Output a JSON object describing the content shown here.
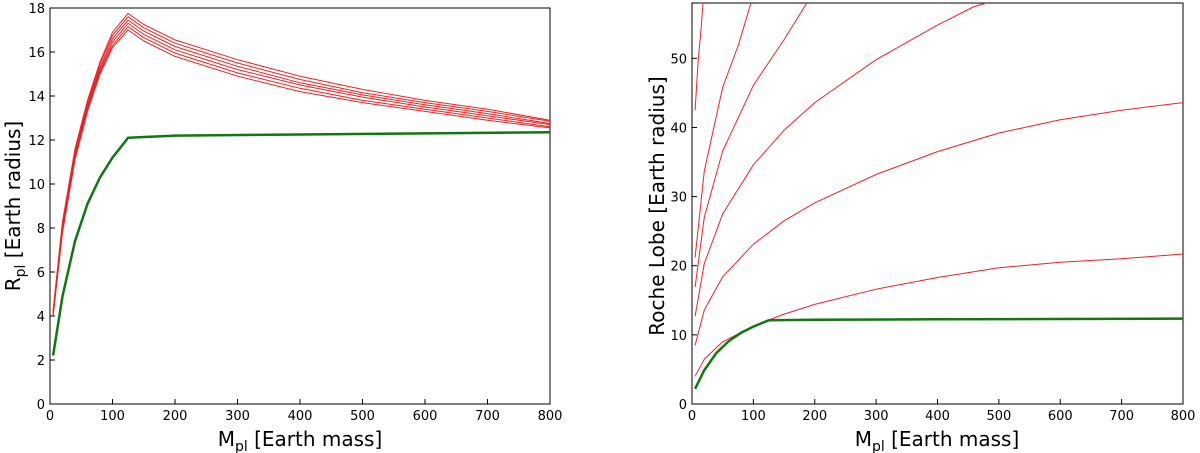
{
  "chart_data": [
    {
      "type": "line",
      "xlabel_main": "M",
      "xlabel_sub": "pl",
      "xlabel_rest": " [Earth mass]",
      "ylabel_main": "R",
      "ylabel_sub": "pl",
      "ylabel_rest": " [Earth radius]",
      "xlim": [
        0,
        800
      ],
      "ylim": [
        0,
        18
      ],
      "xticks": [
        0,
        100,
        200,
        300,
        400,
        500,
        600,
        700,
        800
      ],
      "yticks": [
        0,
        2,
        4,
        6,
        8,
        10,
        12,
        14,
        16,
        18
      ],
      "colors": {
        "red": "#ee2222",
        "green": "#117711"
      },
      "series": [
        {
          "color": "red",
          "points": [
            [
              5,
              4.0
            ],
            [
              20,
              7.8
            ],
            [
              40,
              11.1
            ],
            [
              60,
              13.3
            ],
            [
              80,
              15.0
            ],
            [
              100,
              16.2
            ],
            [
              125,
              17.0
            ],
            [
              150,
              16.5
            ],
            [
              200,
              15.8
            ],
            [
              300,
              14.9
            ],
            [
              400,
              14.2
            ],
            [
              500,
              13.7
            ],
            [
              600,
              13.3
            ],
            [
              700,
              12.9
            ],
            [
              800,
              12.55
            ]
          ]
        },
        {
          "color": "red",
          "points": [
            [
              5,
              4.05
            ],
            [
              20,
              7.9
            ],
            [
              40,
              11.2
            ],
            [
              60,
              13.4
            ],
            [
              80,
              15.1
            ],
            [
              100,
              16.3
            ],
            [
              125,
              17.15
            ],
            [
              150,
              16.65
            ],
            [
              200,
              15.95
            ],
            [
              300,
              15.05
            ],
            [
              400,
              14.35
            ],
            [
              500,
              13.8
            ],
            [
              600,
              13.4
            ],
            [
              700,
              13.0
            ],
            [
              800,
              12.6
            ]
          ]
        },
        {
          "color": "red",
          "points": [
            [
              5,
              4.1
            ],
            [
              20,
              8.0
            ],
            [
              40,
              11.3
            ],
            [
              60,
              13.5
            ],
            [
              80,
              15.2
            ],
            [
              100,
              16.45
            ],
            [
              125,
              17.3
            ],
            [
              150,
              16.8
            ],
            [
              200,
              16.1
            ],
            [
              300,
              15.2
            ],
            [
              400,
              14.5
            ],
            [
              500,
              13.95
            ],
            [
              600,
              13.5
            ],
            [
              700,
              13.1
            ],
            [
              800,
              12.7
            ]
          ]
        },
        {
          "color": "red",
          "points": [
            [
              5,
              4.15
            ],
            [
              20,
              8.1
            ],
            [
              40,
              11.4
            ],
            [
              60,
              13.6
            ],
            [
              80,
              15.3
            ],
            [
              100,
              16.6
            ],
            [
              125,
              17.45
            ],
            [
              150,
              16.95
            ],
            [
              200,
              16.25
            ],
            [
              300,
              15.35
            ],
            [
              400,
              14.6
            ],
            [
              500,
              14.05
            ],
            [
              600,
              13.6
            ],
            [
              700,
              13.2
            ],
            [
              800,
              12.75
            ]
          ]
        },
        {
          "color": "red",
          "points": [
            [
              5,
              4.2
            ],
            [
              20,
              8.2
            ],
            [
              40,
              11.5
            ],
            [
              60,
              13.7
            ],
            [
              80,
              15.45
            ],
            [
              100,
              16.75
            ],
            [
              125,
              17.6
            ],
            [
              150,
              17.1
            ],
            [
              200,
              16.4
            ],
            [
              300,
              15.5
            ],
            [
              400,
              14.75
            ],
            [
              500,
              14.15
            ],
            [
              600,
              13.7
            ],
            [
              700,
              13.3
            ],
            [
              800,
              12.85
            ]
          ]
        },
        {
          "color": "red",
          "points": [
            [
              5,
              4.25
            ],
            [
              20,
              8.3
            ],
            [
              40,
              11.6
            ],
            [
              60,
              13.8
            ],
            [
              80,
              15.55
            ],
            [
              100,
              16.9
            ],
            [
              125,
              17.75
            ],
            [
              150,
              17.25
            ],
            [
              200,
              16.55
            ],
            [
              300,
              15.65
            ],
            [
              400,
              14.9
            ],
            [
              500,
              14.3
            ],
            [
              600,
              13.8
            ],
            [
              700,
              13.4
            ],
            [
              800,
              12.9
            ]
          ]
        },
        {
          "color": "green",
          "points": [
            [
              5,
              2.2
            ],
            [
              20,
              4.9
            ],
            [
              40,
              7.4
            ],
            [
              60,
              9.1
            ],
            [
              80,
              10.3
            ],
            [
              100,
              11.2
            ],
            [
              125,
              12.1
            ],
            [
              200,
              12.2
            ],
            [
              400,
              12.25
            ],
            [
              600,
              12.3
            ],
            [
              800,
              12.35
            ]
          ]
        }
      ]
    },
    {
      "type": "line",
      "xlabel_main": "M",
      "xlabel_sub": "pl",
      "xlabel_rest": " [Earth mass]",
      "ylabel": "Roche Lobe [Earth radius]",
      "xlim": [
        0,
        800
      ],
      "ylim": [
        0,
        58
      ],
      "xticks": [
        0,
        100,
        200,
        300,
        400,
        500,
        600,
        700,
        800
      ],
      "yticks": [
        0,
        10,
        20,
        30,
        40,
        50
      ],
      "colors": {
        "red": "#ee2222",
        "green": "#117711"
      },
      "series": [
        {
          "color": "red",
          "points": [
            [
              5,
              4.0
            ],
            [
              20,
              6.5
            ],
            [
              50,
              9.0
            ],
            [
              100,
              11.3
            ],
            [
              150,
              13.0
            ],
            [
              200,
              14.4
            ],
            [
              300,
              16.6
            ],
            [
              400,
              18.3
            ],
            [
              500,
              19.7
            ],
            [
              600,
              20.5
            ],
            [
              700,
              21.0
            ],
            [
              800,
              21.7
            ]
          ]
        },
        {
          "color": "red",
          "points": [
            [
              5,
              8.5
            ],
            [
              20,
              13.6
            ],
            [
              50,
              18.4
            ],
            [
              100,
              23.1
            ],
            [
              150,
              26.5
            ],
            [
              200,
              29.1
            ],
            [
              300,
              33.2
            ],
            [
              400,
              36.5
            ],
            [
              500,
              39.2
            ],
            [
              600,
              41.1
            ],
            [
              700,
              42.5
            ],
            [
              800,
              43.6
            ]
          ]
        },
        {
          "color": "red",
          "points": [
            [
              5,
              12.7
            ],
            [
              20,
              20.3
            ],
            [
              50,
              27.5
            ],
            [
              100,
              34.6
            ],
            [
              150,
              39.6
            ],
            [
              200,
              43.6
            ],
            [
              300,
              49.8
            ],
            [
              400,
              54.8
            ],
            [
              460,
              57.5
            ],
            [
              480,
              58.0
            ]
          ]
        },
        {
          "color": "red",
          "points": [
            [
              5,
              16.9
            ],
            [
              20,
              27.0
            ],
            [
              50,
              36.6
            ],
            [
              100,
              46.1
            ],
            [
              150,
              52.7
            ],
            [
              187,
              58.0
            ]
          ]
        },
        {
          "color": "red",
          "points": [
            [
              5,
              21.2
            ],
            [
              20,
              33.7
            ],
            [
              50,
              45.8
            ],
            [
              76,
              52.0
            ],
            [
              96,
              58.0
            ]
          ]
        },
        {
          "color": "red",
          "points": [
            [
              5,
              42.5
            ],
            [
              10,
              49.5
            ],
            [
              15,
              54.5
            ],
            [
              18,
              58.0
            ]
          ]
        },
        {
          "color": "green",
          "points": [
            [
              5,
              2.2
            ],
            [
              20,
              4.9
            ],
            [
              40,
              7.4
            ],
            [
              60,
              9.1
            ],
            [
              80,
              10.3
            ],
            [
              100,
              11.2
            ],
            [
              125,
              12.1
            ],
            [
              200,
              12.2
            ],
            [
              400,
              12.25
            ],
            [
              600,
              12.3
            ],
            [
              800,
              12.35
            ]
          ]
        }
      ]
    }
  ]
}
